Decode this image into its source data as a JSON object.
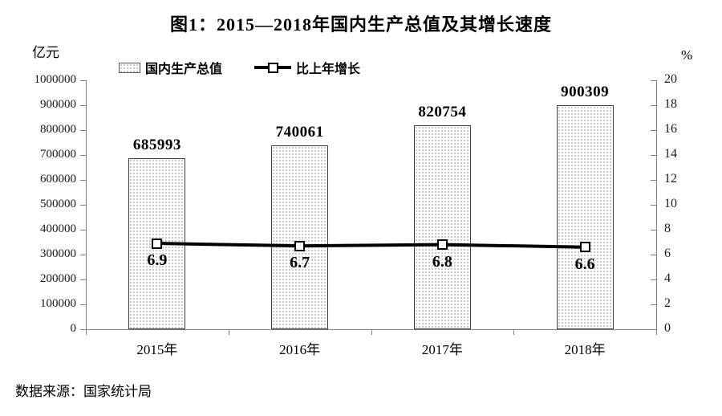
{
  "footer": "数据来源：国家统计局",
  "chart_data": {
    "type": "bar+line",
    "title": "图1：2015—2018年国内生产总值及其增长速度",
    "categories": [
      "2015年",
      "2016年",
      "2017年",
      "2018年"
    ],
    "series": [
      {
        "name": "国内生产总值",
        "type": "bar",
        "axis": "left",
        "values": [
          685993,
          740061,
          820754,
          900309
        ]
      },
      {
        "name": "比上年增长",
        "type": "line",
        "axis": "right",
        "values": [
          6.9,
          6.7,
          6.8,
          6.6
        ]
      }
    ],
    "left_axis": {
      "unit": "亿元",
      "min": 0,
      "max": 1000000,
      "step": 100000
    },
    "right_axis": {
      "unit": "%",
      "min": 0,
      "max": 20,
      "step": 2
    },
    "grid": false,
    "legend_position": "top",
    "colors": {
      "axis": "#808080",
      "text": "#000000",
      "bar_border": "#404040",
      "bar_dot": "#c6c6c6",
      "line": "#000000",
      "marker_fill": "#ffffff"
    }
  }
}
